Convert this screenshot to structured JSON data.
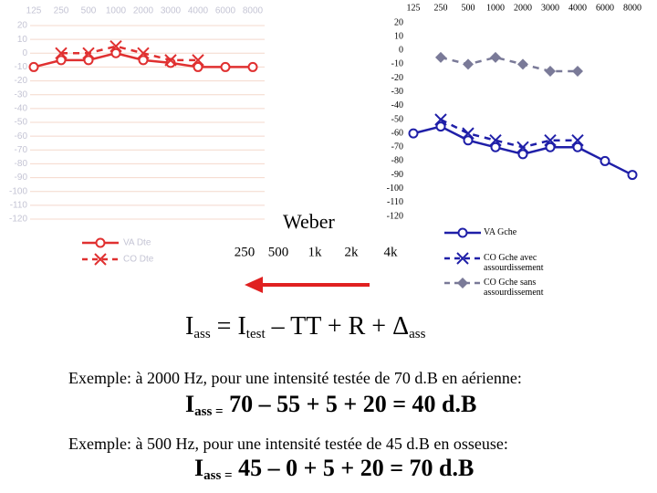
{
  "chart_data": [
    {
      "type": "line",
      "categories": [
        "125",
        "250",
        "500",
        "1000",
        "2000",
        "3000",
        "4000",
        "6000",
        "8000"
      ],
      "ylim": [
        -120,
        20
      ],
      "yticks": [
        20,
        10,
        0,
        -10,
        -20,
        -30,
        -40,
        -50,
        -60,
        -70,
        -80,
        -90,
        -100,
        -110,
        -120
      ],
      "grid": true,
      "series": [
        {
          "name": "VA Dte",
          "color": "#e03030",
          "marker": "circle",
          "dashed": false,
          "values": [
            -10,
            -5,
            -5,
            0,
            -5,
            -7,
            -10,
            -10,
            -10
          ]
        },
        {
          "name": "CO Dte",
          "color": "#e03030",
          "marker": "x",
          "dashed": true,
          "values": [
            null,
            0,
            0,
            5,
            0,
            -5,
            -5,
            null,
            null
          ]
        }
      ]
    },
    {
      "type": "line",
      "categories": [
        "125",
        "250",
        "500",
        "1000",
        "2000",
        "3000",
        "4000",
        "6000",
        "8000"
      ],
      "ylim": [
        -120,
        20
      ],
      "yticks": [
        20,
        10,
        0,
        -10,
        -20,
        -30,
        -40,
        -50,
        -60,
        -70,
        -80,
        -90,
        -100,
        -110,
        -120
      ],
      "grid": false,
      "series": [
        {
          "name": "VA Gche",
          "color": "#1f1fa8",
          "marker": "circle",
          "dashed": false,
          "values": [
            -60,
            -55,
            -65,
            -70,
            -75,
            -70,
            -70,
            -80,
            -90
          ]
        },
        {
          "name": "CO Gche avec assourdissement",
          "color": "#1f1fa8",
          "marker": "x",
          "dashed": true,
          "values": [
            null,
            -50,
            -60,
            -65,
            -70,
            -65,
            -65,
            null,
            null
          ]
        },
        {
          "name": "CO Gche sans assourdissement",
          "color": "#7a7a98",
          "marker": "diamond",
          "dashed": true,
          "values": [
            null,
            -5,
            -10,
            -5,
            -10,
            -15,
            -15,
            null,
            null
          ]
        }
      ]
    }
  ],
  "weber": {
    "title": "Weber",
    "labels": [
      "250",
      "500",
      "1k",
      "2k",
      "4k"
    ]
  },
  "formula": {
    "terms": [
      {
        "main": "I",
        "sub": "ass"
      },
      {
        "main": " = I",
        "sub": "test"
      },
      {
        "main": " – TT + R + Δ",
        "sub": "ass"
      }
    ]
  },
  "example1": {
    "text": "Exemple: à 2000 Hz, pour une intensité testée de 70 d.B en aérienne:",
    "terms": [
      {
        "main": "I",
        "sub": "ass ="
      },
      {
        "main": " 70 – 55 + 5 + 20 = 40 d.B"
      }
    ]
  },
  "example2": {
    "text": "Exemple: à 500 Hz, pour une intensité testée de 45 d.B en osseuse:",
    "terms": [
      {
        "main": "I",
        "sub": "ass ="
      },
      {
        "main": " 45 – 0 + 5 + 20 = 70 d.B"
      }
    ]
  }
}
